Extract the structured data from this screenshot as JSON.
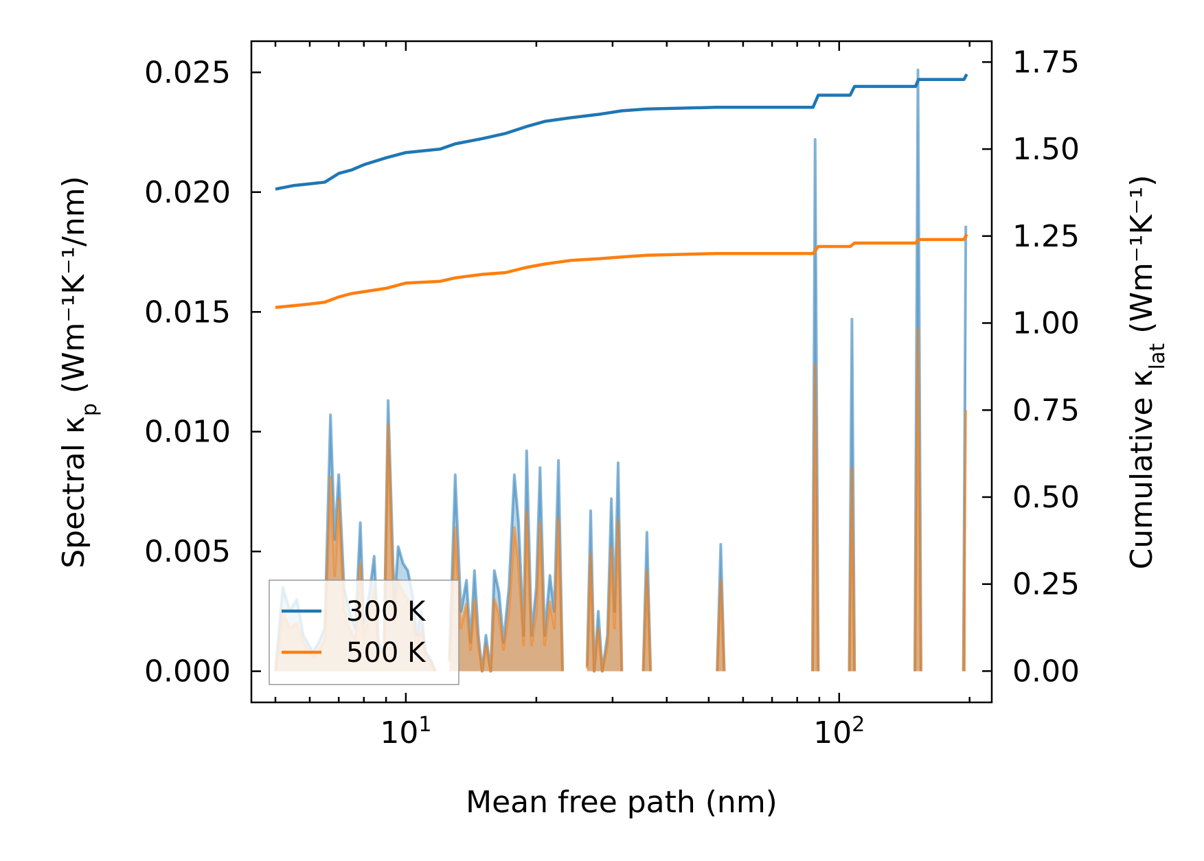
{
  "chart_data": {
    "type": "line",
    "xscale": "log",
    "xlabel": "Mean free path (nm)",
    "ylabel_left": {
      "main": "Spectral κ",
      "sub": "p",
      "units": " (Wm⁻¹K⁻¹/nm)"
    },
    "ylabel_right": {
      "main": "Cumulative κ",
      "sub": "lat",
      "units": " (Wm⁻¹K⁻¹)"
    },
    "xlim": [
      4.4,
      225
    ],
    "ylim_left": [
      -0.0013,
      0.0263
    ],
    "ylim_right": [
      -0.09,
      1.81
    ],
    "x_tick_labels": [
      {
        "value": 10,
        "base": "10",
        "exp": "1"
      },
      {
        "value": 100,
        "base": "10",
        "exp": "2"
      }
    ],
    "left_ticks": [
      {
        "value": 0,
        "label": "0.000"
      },
      {
        "value": 0.005,
        "label": "0.005"
      },
      {
        "value": 0.01,
        "label": "0.010"
      },
      {
        "value": 0.015,
        "label": "0.015"
      },
      {
        "value": 0.02,
        "label": "0.020"
      },
      {
        "value": 0.025,
        "label": "0.025"
      }
    ],
    "right_ticks": [
      {
        "value": 0,
        "label": "0.00"
      },
      {
        "value": 0.25,
        "label": "0.25"
      },
      {
        "value": 0.5,
        "label": "0.50"
      },
      {
        "value": 0.75,
        "label": "0.75"
      },
      {
        "value": 1.0,
        "label": "1.00"
      },
      {
        "value": 1.25,
        "label": "1.25"
      },
      {
        "value": 1.5,
        "label": "1.50"
      },
      {
        "value": 1.75,
        "label": "1.75"
      }
    ],
    "legend": {
      "position": "lower-left"
    },
    "series": [
      {
        "name": "300 K",
        "color": "#1f77b4",
        "spectral": [
          [
            5.0,
            0.0
          ],
          [
            5.2,
            0.0035
          ],
          [
            5.4,
            0.0025
          ],
          [
            5.6,
            0.003
          ],
          [
            5.8,
            0.0015
          ],
          [
            6.1,
            0.0008
          ],
          [
            6.3,
            0.0012
          ],
          [
            6.5,
            0.0018
          ],
          [
            6.7,
            0.0107
          ],
          [
            6.85,
            0.0055
          ],
          [
            7.0,
            0.0082
          ],
          [
            7.2,
            0.0035
          ],
          [
            7.4,
            0.0025
          ],
          [
            7.65,
            0.0018
          ],
          [
            7.85,
            0.0062
          ],
          [
            8.0,
            0.002
          ],
          [
            8.25,
            0.0033
          ],
          [
            8.45,
            0.0048
          ],
          [
            8.65,
            0.0012
          ],
          [
            8.9,
            0.0008
          ],
          [
            9.1,
            0.0113
          ],
          [
            9.4,
            0.0028
          ],
          [
            9.6,
            0.0052
          ],
          [
            9.85,
            0.0045
          ],
          [
            10.1,
            0.0042
          ],
          [
            10.35,
            0.0032
          ],
          [
            10.6,
            0.0015
          ],
          [
            10.85,
            0.0025
          ],
          [
            11.1,
            0.0008
          ],
          [
            11.4,
            0.0005
          ],
          [
            11.7,
            0.0,
            "gap"
          ],
          [
            12.6,
            0.0005
          ],
          [
            13.0,
            0.0082
          ],
          [
            13.4,
            0.0025
          ],
          [
            13.8,
            0.0038
          ],
          [
            14.1,
            0.0012
          ],
          [
            14.4,
            0.0042
          ],
          [
            14.7,
            0.0015
          ],
          [
            15.0,
            0.0
          ],
          [
            15.3,
            0.0015
          ],
          [
            15.7,
            0.0
          ],
          [
            16.0,
            0.0042
          ],
          [
            16.4,
            0.0033
          ],
          [
            16.8,
            0.0012
          ],
          [
            17.3,
            0.0035
          ],
          [
            17.8,
            0.0082
          ],
          [
            18.2,
            0.0062
          ],
          [
            18.7,
            0.0015
          ],
          [
            19.0,
            0.0092
          ],
          [
            19.5,
            0.0015
          ],
          [
            20.0,
            0.0035
          ],
          [
            20.4,
            0.0085
          ],
          [
            20.9,
            0.0015
          ],
          [
            21.5,
            0.004
          ],
          [
            22.0,
            0.0025
          ],
          [
            22.5,
            0.0088
          ],
          [
            23.0,
            0.0,
            "gap"
          ],
          [
            26.2,
            0.0002
          ],
          [
            26.7,
            0.0067
          ],
          [
            27.2,
            0.0
          ],
          [
            27.8,
            0.0025
          ],
          [
            28.4,
            0.0
          ],
          [
            29.2,
            0.0015
          ],
          [
            29.8,
            0.0072
          ],
          [
            30.3,
            0.0025
          ],
          [
            30.9,
            0.0087
          ],
          [
            31.5,
            0.0,
            "gap"
          ],
          [
            35.3,
            0.0
          ],
          [
            36.0,
            0.0058
          ],
          [
            36.7,
            0.0,
            "gap"
          ],
          [
            52.3,
            0.0
          ],
          [
            53.3,
            0.0053
          ],
          [
            54.3,
            0.0,
            "gap"
          ],
          [
            86.8,
            0.0
          ],
          [
            88.0,
            0.0222
          ],
          [
            89.5,
            0.0,
            "gap"
          ],
          [
            105.5,
            0.0
          ],
          [
            107.0,
            0.0147
          ],
          [
            108.5,
            0.0,
            "gap"
          ],
          [
            149.5,
            0.0
          ],
          [
            152.0,
            0.0251
          ],
          [
            154.5,
            0.0,
            "gap"
          ],
          [
            193.5,
            0.0
          ],
          [
            196.0,
            0.0186
          ]
        ],
        "cumulative": [
          [
            5.0,
            1.385
          ],
          [
            5.5,
            1.395
          ],
          [
            6.0,
            1.4
          ],
          [
            6.5,
            1.405
          ],
          [
            7.0,
            1.43
          ],
          [
            7.5,
            1.44
          ],
          [
            8.0,
            1.455
          ],
          [
            9.0,
            1.475
          ],
          [
            10.0,
            1.49
          ],
          [
            12.0,
            1.5
          ],
          [
            13.0,
            1.515
          ],
          [
            15.0,
            1.53
          ],
          [
            17.0,
            1.545
          ],
          [
            19.0,
            1.565
          ],
          [
            21.0,
            1.58
          ],
          [
            24.0,
            1.59
          ],
          [
            28.0,
            1.6
          ],
          [
            31.5,
            1.61
          ],
          [
            36.0,
            1.615
          ],
          [
            52.0,
            1.62
          ],
          [
            87.0,
            1.62
          ],
          [
            89.5,
            1.655
          ],
          [
            106.0,
            1.655
          ],
          [
            108.5,
            1.68
          ],
          [
            150.0,
            1.68
          ],
          [
            152.5,
            1.7
          ],
          [
            194.0,
            1.7
          ],
          [
            197.0,
            1.715
          ]
        ]
      },
      {
        "name": "500 K",
        "color": "#ff7f0e",
        "spectral": [
          [
            5.0,
            0.0
          ],
          [
            5.2,
            0.0024
          ],
          [
            5.4,
            0.0018
          ],
          [
            5.6,
            0.002
          ],
          [
            5.8,
            0.0012
          ],
          [
            6.1,
            0.0006
          ],
          [
            6.3,
            0.0009
          ],
          [
            6.5,
            0.0013
          ],
          [
            6.7,
            0.0081
          ],
          [
            6.85,
            0.004
          ],
          [
            7.0,
            0.0072
          ],
          [
            7.2,
            0.0026
          ],
          [
            7.4,
            0.0018
          ],
          [
            7.65,
            0.0013
          ],
          [
            7.85,
            0.0045
          ],
          [
            8.0,
            0.0014
          ],
          [
            8.25,
            0.0024
          ],
          [
            8.45,
            0.0035
          ],
          [
            8.65,
            0.0009
          ],
          [
            8.9,
            0.0006
          ],
          [
            9.1,
            0.0103
          ],
          [
            9.4,
            0.002
          ],
          [
            9.6,
            0.0038
          ],
          [
            9.85,
            0.0033
          ],
          [
            10.1,
            0.003
          ],
          [
            10.35,
            0.0023
          ],
          [
            10.6,
            0.0011
          ],
          [
            10.85,
            0.0018
          ],
          [
            11.1,
            0.0006
          ],
          [
            11.4,
            0.0004
          ],
          [
            11.7,
            0.0,
            "gap"
          ],
          [
            12.6,
            0.0004
          ],
          [
            13.0,
            0.006
          ],
          [
            13.4,
            0.0018
          ],
          [
            13.8,
            0.0028
          ],
          [
            14.1,
            0.0009
          ],
          [
            14.4,
            0.003
          ],
          [
            14.7,
            0.0011
          ],
          [
            15.0,
            0.0
          ],
          [
            15.3,
            0.0011
          ],
          [
            15.7,
            0.0
          ],
          [
            16.0,
            0.003
          ],
          [
            16.4,
            0.0024
          ],
          [
            16.8,
            0.0009
          ],
          [
            17.3,
            0.0025
          ],
          [
            17.8,
            0.006
          ],
          [
            18.2,
            0.0045
          ],
          [
            18.7,
            0.0011
          ],
          [
            19.0,
            0.0067
          ],
          [
            19.5,
            0.0011
          ],
          [
            20.0,
            0.0025
          ],
          [
            20.4,
            0.0062
          ],
          [
            20.9,
            0.0011
          ],
          [
            21.5,
            0.0029
          ],
          [
            22.0,
            0.0018
          ],
          [
            22.5,
            0.0064
          ],
          [
            23.0,
            0.0,
            "gap"
          ],
          [
            26.2,
            0.0001
          ],
          [
            26.7,
            0.0049
          ],
          [
            27.2,
            0.0
          ],
          [
            27.8,
            0.0018
          ],
          [
            28.4,
            0.0
          ],
          [
            29.2,
            0.0011
          ],
          [
            29.8,
            0.0052
          ],
          [
            30.3,
            0.0018
          ],
          [
            30.9,
            0.0063
          ],
          [
            31.5,
            0.0,
            "gap"
          ],
          [
            35.3,
            0.0
          ],
          [
            36.0,
            0.0042
          ],
          [
            36.7,
            0.0,
            "gap"
          ],
          [
            52.3,
            0.0
          ],
          [
            53.3,
            0.0038
          ],
          [
            54.3,
            0.0,
            "gap"
          ],
          [
            86.8,
            0.0
          ],
          [
            88.0,
            0.0128
          ],
          [
            89.5,
            0.0,
            "gap"
          ],
          [
            105.5,
            0.0
          ],
          [
            107.0,
            0.0085
          ],
          [
            108.5,
            0.0,
            "gap"
          ],
          [
            149.5,
            0.0
          ],
          [
            152.0,
            0.0143
          ],
          [
            154.5,
            0.0,
            "gap"
          ],
          [
            193.5,
            0.0
          ],
          [
            196.0,
            0.0109
          ]
        ],
        "cumulative": [
          [
            5.0,
            1.045
          ],
          [
            5.5,
            1.05
          ],
          [
            6.0,
            1.055
          ],
          [
            6.5,
            1.06
          ],
          [
            7.0,
            1.075
          ],
          [
            7.5,
            1.085
          ],
          [
            8.0,
            1.09
          ],
          [
            9.0,
            1.1
          ],
          [
            10.0,
            1.115
          ],
          [
            12.0,
            1.12
          ],
          [
            13.0,
            1.13
          ],
          [
            15.0,
            1.14
          ],
          [
            17.0,
            1.145
          ],
          [
            19.0,
            1.16
          ],
          [
            21.0,
            1.17
          ],
          [
            24.0,
            1.18
          ],
          [
            28.0,
            1.185
          ],
          [
            31.5,
            1.19
          ],
          [
            36.0,
            1.195
          ],
          [
            52.0,
            1.2
          ],
          [
            87.0,
            1.2
          ],
          [
            89.5,
            1.22
          ],
          [
            106.0,
            1.22
          ],
          [
            108.5,
            1.23
          ],
          [
            150.0,
            1.23
          ],
          [
            152.5,
            1.24
          ],
          [
            194.0,
            1.24
          ],
          [
            197.0,
            1.255
          ]
        ]
      }
    ]
  }
}
